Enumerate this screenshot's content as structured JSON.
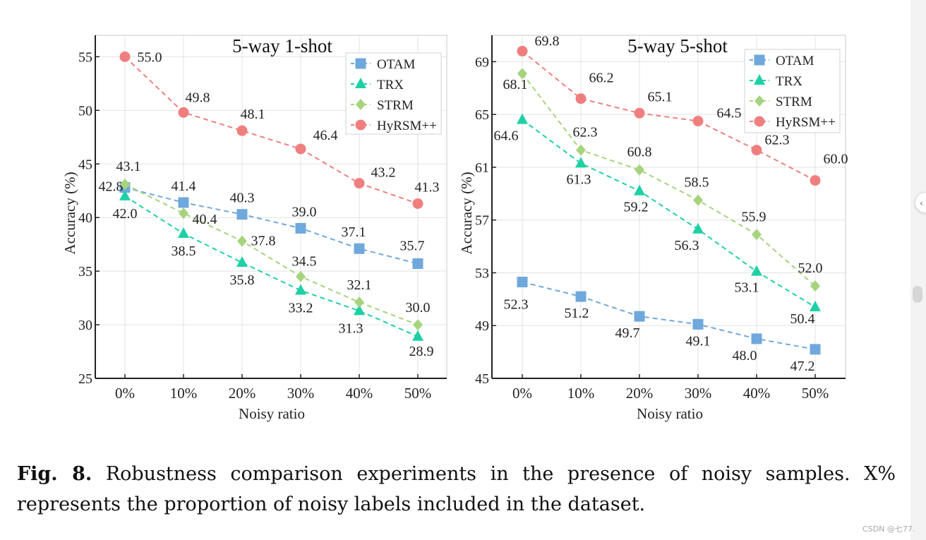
{
  "caption": {
    "label": "Fig. 8.",
    "text": "Robustness comparison experiments in the presence of noisy samples. X% represents the proportion of noisy labels included in the dataset."
  },
  "watermark": "CSDN @七77.",
  "ui": {
    "side_button_glyph": "‹"
  },
  "colors": {
    "OTAM": "#6fa8dc",
    "TRX": "#1fd0a6",
    "STRM": "#a6d47e",
    "HyRSM++": "#ef7f7f"
  },
  "chart_data": [
    {
      "type": "line",
      "title": "5-way 1-shot",
      "xlabel": "Noisy ratio",
      "ylabel": "Accuracy (%)",
      "categories": [
        "0%",
        "10%",
        "20%",
        "30%",
        "40%",
        "50%"
      ],
      "ylim": [
        25,
        57
      ],
      "yticks": [
        25,
        30,
        35,
        40,
        45,
        50,
        55
      ],
      "legend_position": "top-right",
      "series": [
        {
          "name": "OTAM",
          "marker": "square",
          "values": [
            42.8,
            41.4,
            40.3,
            39.0,
            37.1,
            35.7
          ],
          "labels": [
            "42.8",
            "41.4",
            "40.3",
            "39.0",
            "37.1",
            "35.7"
          ]
        },
        {
          "name": "TRX",
          "marker": "triangle",
          "values": [
            42.0,
            38.5,
            35.8,
            33.2,
            31.3,
            28.9
          ],
          "labels": [
            "42.0",
            "38.5",
            "35.8",
            "33.2",
            "31.3",
            "28.9"
          ]
        },
        {
          "name": "STRM",
          "marker": "diamond",
          "values": [
            43.1,
            40.4,
            37.8,
            34.5,
            32.1,
            30.0
          ],
          "labels": [
            "43.1",
            "40.4",
            "37.8",
            "34.5",
            "32.1",
            "30.0"
          ]
        },
        {
          "name": "HyRSM++",
          "marker": "circle",
          "values": [
            55.0,
            49.8,
            48.1,
            46.4,
            43.2,
            41.3
          ],
          "labels": [
            "55.0",
            "49.8",
            "48.1",
            "46.4",
            "43.2",
            "41.3"
          ]
        }
      ]
    },
    {
      "type": "line",
      "title": "5-way 5-shot",
      "xlabel": "Noisy ratio",
      "ylabel": "Accuracy (%)",
      "categories": [
        "0%",
        "10%",
        "20%",
        "30%",
        "40%",
        "50%"
      ],
      "ylim": [
        45,
        71
      ],
      "yticks": [
        45,
        49,
        53,
        57,
        61,
        65,
        69
      ],
      "legend_position": "top-right",
      "series": [
        {
          "name": "OTAM",
          "marker": "square",
          "values": [
            52.3,
            51.2,
            49.7,
            49.1,
            48.0,
            47.2
          ],
          "labels": [
            "52.3",
            "51.2",
            "49.7",
            "49.1",
            "48.0",
            "47.2"
          ]
        },
        {
          "name": "TRX",
          "marker": "triangle",
          "values": [
            64.6,
            61.3,
            59.2,
            56.3,
            53.1,
            50.4
          ],
          "labels": [
            "64.6",
            "61.3",
            "59.2",
            "56.3",
            "53.1",
            "50.4"
          ]
        },
        {
          "name": "STRM",
          "marker": "diamond",
          "values": [
            68.1,
            62.3,
            60.8,
            58.5,
            55.9,
            52.0
          ],
          "labels": [
            "68.1",
            "62.3",
            "60.8",
            "58.5",
            "55.9",
            "52.0"
          ]
        },
        {
          "name": "HyRSM++",
          "marker": "circle",
          "values": [
            69.8,
            66.2,
            65.1,
            64.5,
            62.3,
            60.0
          ],
          "labels": [
            "69.8",
            "66.2",
            "65.1",
            "64.5",
            "62.3",
            "60.0"
          ]
        }
      ]
    }
  ]
}
